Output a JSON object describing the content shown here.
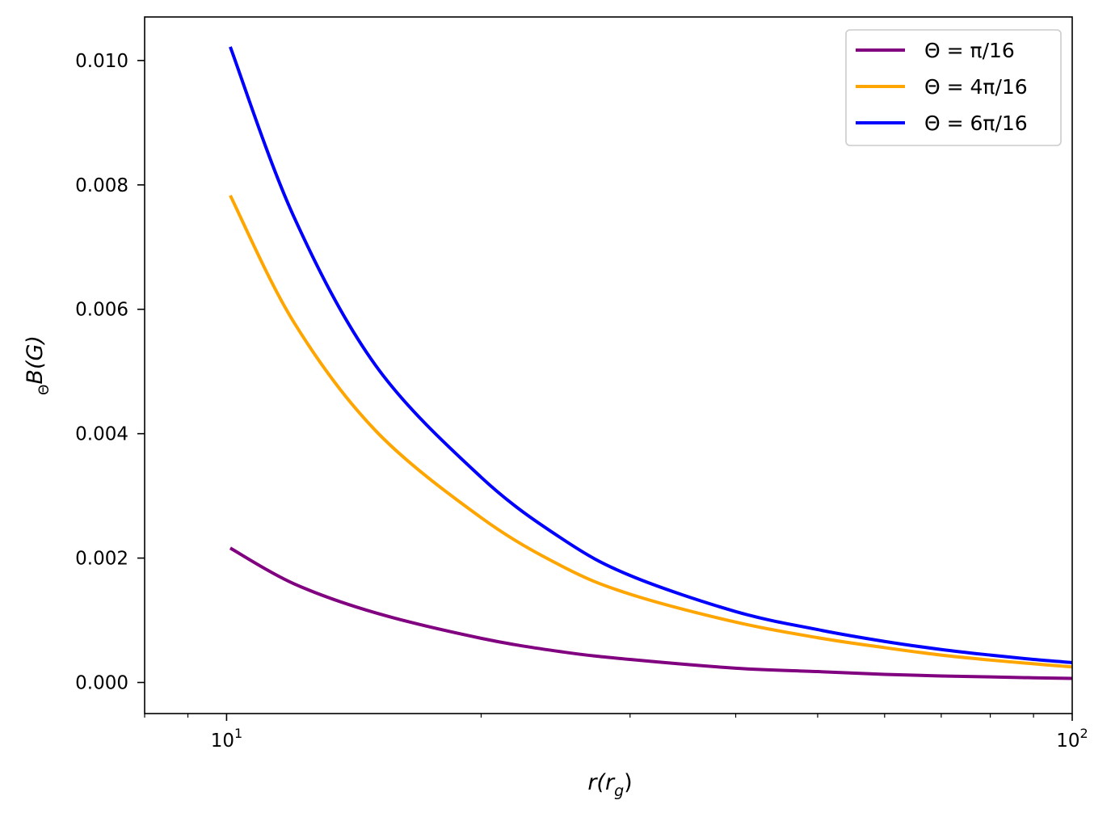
{
  "chart_data": {
    "type": "line",
    "x_scale": "log",
    "xlim": [
      8,
      100
    ],
    "ylim": [
      -0.0005,
      0.0107
    ],
    "xlabel": {
      "main": "r(r",
      "sub": "g",
      "close": ")"
    },
    "ylabel": {
      "sub": "Θ",
      "main": "B(G)"
    },
    "x_ticks": [
      {
        "value": 10,
        "base": "10",
        "exp": "1"
      },
      {
        "value": 100,
        "base": "10",
        "exp": "2"
      }
    ],
    "y_ticks": [
      {
        "value": 0.0,
        "label": "0.000"
      },
      {
        "value": 0.002,
        "label": "0.002"
      },
      {
        "value": 0.004,
        "label": "0.004"
      },
      {
        "value": 0.006,
        "label": "0.006"
      },
      {
        "value": 0.008,
        "label": "0.008"
      },
      {
        "value": 0.01,
        "label": "0.010"
      }
    ],
    "legend_position": "top-right",
    "grid": false,
    "series": [
      {
        "name": "Θ = π/16",
        "color": "#800080",
        "x": [
          10.1,
          12,
          15,
          20,
          25,
          30,
          40,
          50,
          60,
          70,
          80,
          90,
          100
        ],
        "y": [
          0.00216,
          0.00159,
          0.00112,
          0.00071,
          0.00049,
          0.00037,
          0.00023,
          0.000175,
          0.00013,
          0.000105,
          9e-05,
          7.5e-05,
          6.5e-05
        ]
      },
      {
        "name": "Θ = 4π/16",
        "color": "#FFA500",
        "x": [
          10.1,
          12,
          15,
          20,
          25,
          30,
          40,
          50,
          60,
          70,
          80,
          90,
          100
        ],
        "y": [
          0.00783,
          0.0058,
          0.00405,
          0.00265,
          0.00186,
          0.00142,
          0.00097,
          0.00072,
          0.00056,
          0.00044,
          0.00036,
          0.0003,
          0.00025
        ]
      },
      {
        "name": "Θ = 6π/16",
        "color": "#0000FF",
        "x": [
          10.1,
          12,
          15,
          20,
          25,
          30,
          40,
          50,
          60,
          70,
          80,
          90,
          100
        ],
        "y": [
          0.01022,
          0.0075,
          0.0051,
          0.0033,
          0.0023,
          0.00172,
          0.00114,
          0.00085,
          0.00066,
          0.00053,
          0.00044,
          0.00037,
          0.00032
        ]
      }
    ]
  }
}
